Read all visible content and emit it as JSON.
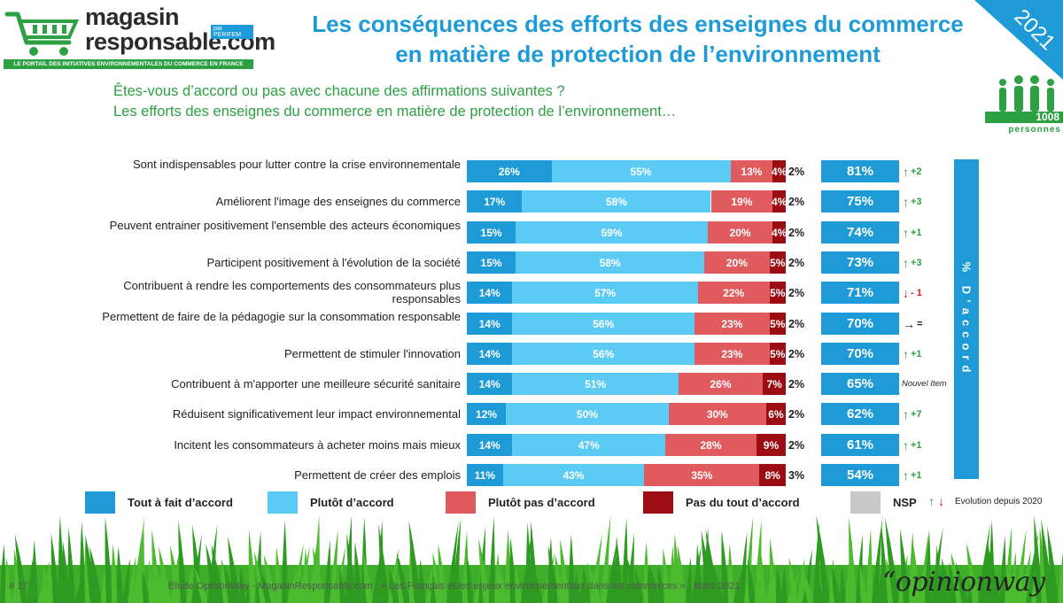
{
  "header": {
    "brand_line1": "magasin",
    "brand_line2": "responsable.com",
    "brand_badge": "par PERIFEM",
    "tagline": "LE PORTAIL DES INITIATIVES ENVIRONNEMENTALES DU COMMERCE EN FRANCE",
    "title_line1": "Les conséquences des efforts des enseignes du commerce",
    "title_line2": "en matière de protection de l’environnement",
    "year": "2021"
  },
  "question": {
    "line1": "Êtes-vous d’accord ou pas avec chacune des affirmations suivantes ?",
    "line2": "Les efforts des enseignes du commerce en matière de protection de l’environnement…"
  },
  "sample": {
    "count": "1008",
    "label": "personnes"
  },
  "side_label": "% D’accord",
  "colors": {
    "tout_a_fait": "#1e9bd7",
    "plutot": "#5bcbf5",
    "plutot_pas": "#e05b5e",
    "pas_du_tout": "#9b0d12",
    "nsp": "#c8c8c8",
    "green": "#2ca043",
    "red": "#d9141b"
  },
  "chart_data": {
    "type": "bar",
    "orientation": "horizontal",
    "stacked": true,
    "title": "Les conséquences des efforts des enseignes du commerce en matière de protection de l’environnement",
    "series_names": [
      "Tout à fait d’accord",
      "Plutôt d’accord",
      "Plutôt pas d’accord",
      "Pas du tout d’accord",
      "NSP"
    ],
    "rows": [
      {
        "label": "Sont indispensables pour lutter contre la crise environnementale",
        "values": [
          26,
          55,
          13,
          4,
          2
        ],
        "agree": "81%",
        "evo": "+2",
        "evo_dir": "up"
      },
      {
        "label": "Améliorent l'image des enseignes du commerce",
        "values": [
          17,
          58,
          19,
          4,
          2
        ],
        "agree": "75%",
        "evo": "+3",
        "evo_dir": "up"
      },
      {
        "label": "Peuvent entrainer positivement l'ensemble des acteurs économiques",
        "values": [
          15,
          59,
          20,
          4,
          2
        ],
        "agree": "74%",
        "evo": "+1",
        "evo_dir": "up"
      },
      {
        "label": "Participent positivement à l'évolution de la société",
        "values": [
          15,
          58,
          20,
          5,
          2
        ],
        "agree": "73%",
        "evo": "+3",
        "evo_dir": "up"
      },
      {
        "label": "Contribuent à rendre les comportements des consommateurs plus responsables",
        "values": [
          14,
          57,
          22,
          5,
          2
        ],
        "agree": "71%",
        "evo": "- 1",
        "evo_dir": "down"
      },
      {
        "label": "Permettent de faire de la pédagogie sur la consommation responsable",
        "values": [
          14,
          56,
          23,
          5,
          2
        ],
        "agree": "70%",
        "evo": "=",
        "evo_dir": "eq"
      },
      {
        "label": "Permettent de stimuler l'innovation",
        "values": [
          14,
          56,
          23,
          5,
          2
        ],
        "agree": "70%",
        "evo": "+1",
        "evo_dir": "up"
      },
      {
        "label": "Contribuent à m'apporter une meilleure sécurité sanitaire",
        "values": [
          14,
          51,
          26,
          7,
          2
        ],
        "agree": "65%",
        "evo": "Nouvel Item",
        "evo_dir": "new"
      },
      {
        "label": "Réduisent significativement leur impact environnemental",
        "values": [
          12,
          50,
          30,
          6,
          2
        ],
        "agree": "62%",
        "evo": "+7",
        "evo_dir": "up"
      },
      {
        "label": "Incitent les consommateurs à acheter moins mais mieux",
        "values": [
          14,
          47,
          28,
          9,
          2
        ],
        "agree": "61%",
        "evo": "+1",
        "evo_dir": "up"
      },
      {
        "label": "Permettent de créer des emplois",
        "values": [
          11,
          43,
          35,
          8,
          3
        ],
        "agree": "54%",
        "evo": "+1",
        "evo_dir": "up"
      }
    ]
  },
  "legend": {
    "tout_a_fait": "Tout à fait d’accord",
    "plutot": "Plutôt d’accord",
    "plutot_pas": "Plutôt pas d’accord",
    "pas_du_tout": "Pas du tout d’accord",
    "nsp": "NSP",
    "evolution": "Evolution depuis 2020"
  },
  "footer": {
    "page": "# 17",
    "text": "Etude OpinionWay - MagasinResponsable.com : « Les Français et les enjeux environnementaux dans les commerces » - Mars 2021",
    "brand": "“opinionway"
  }
}
